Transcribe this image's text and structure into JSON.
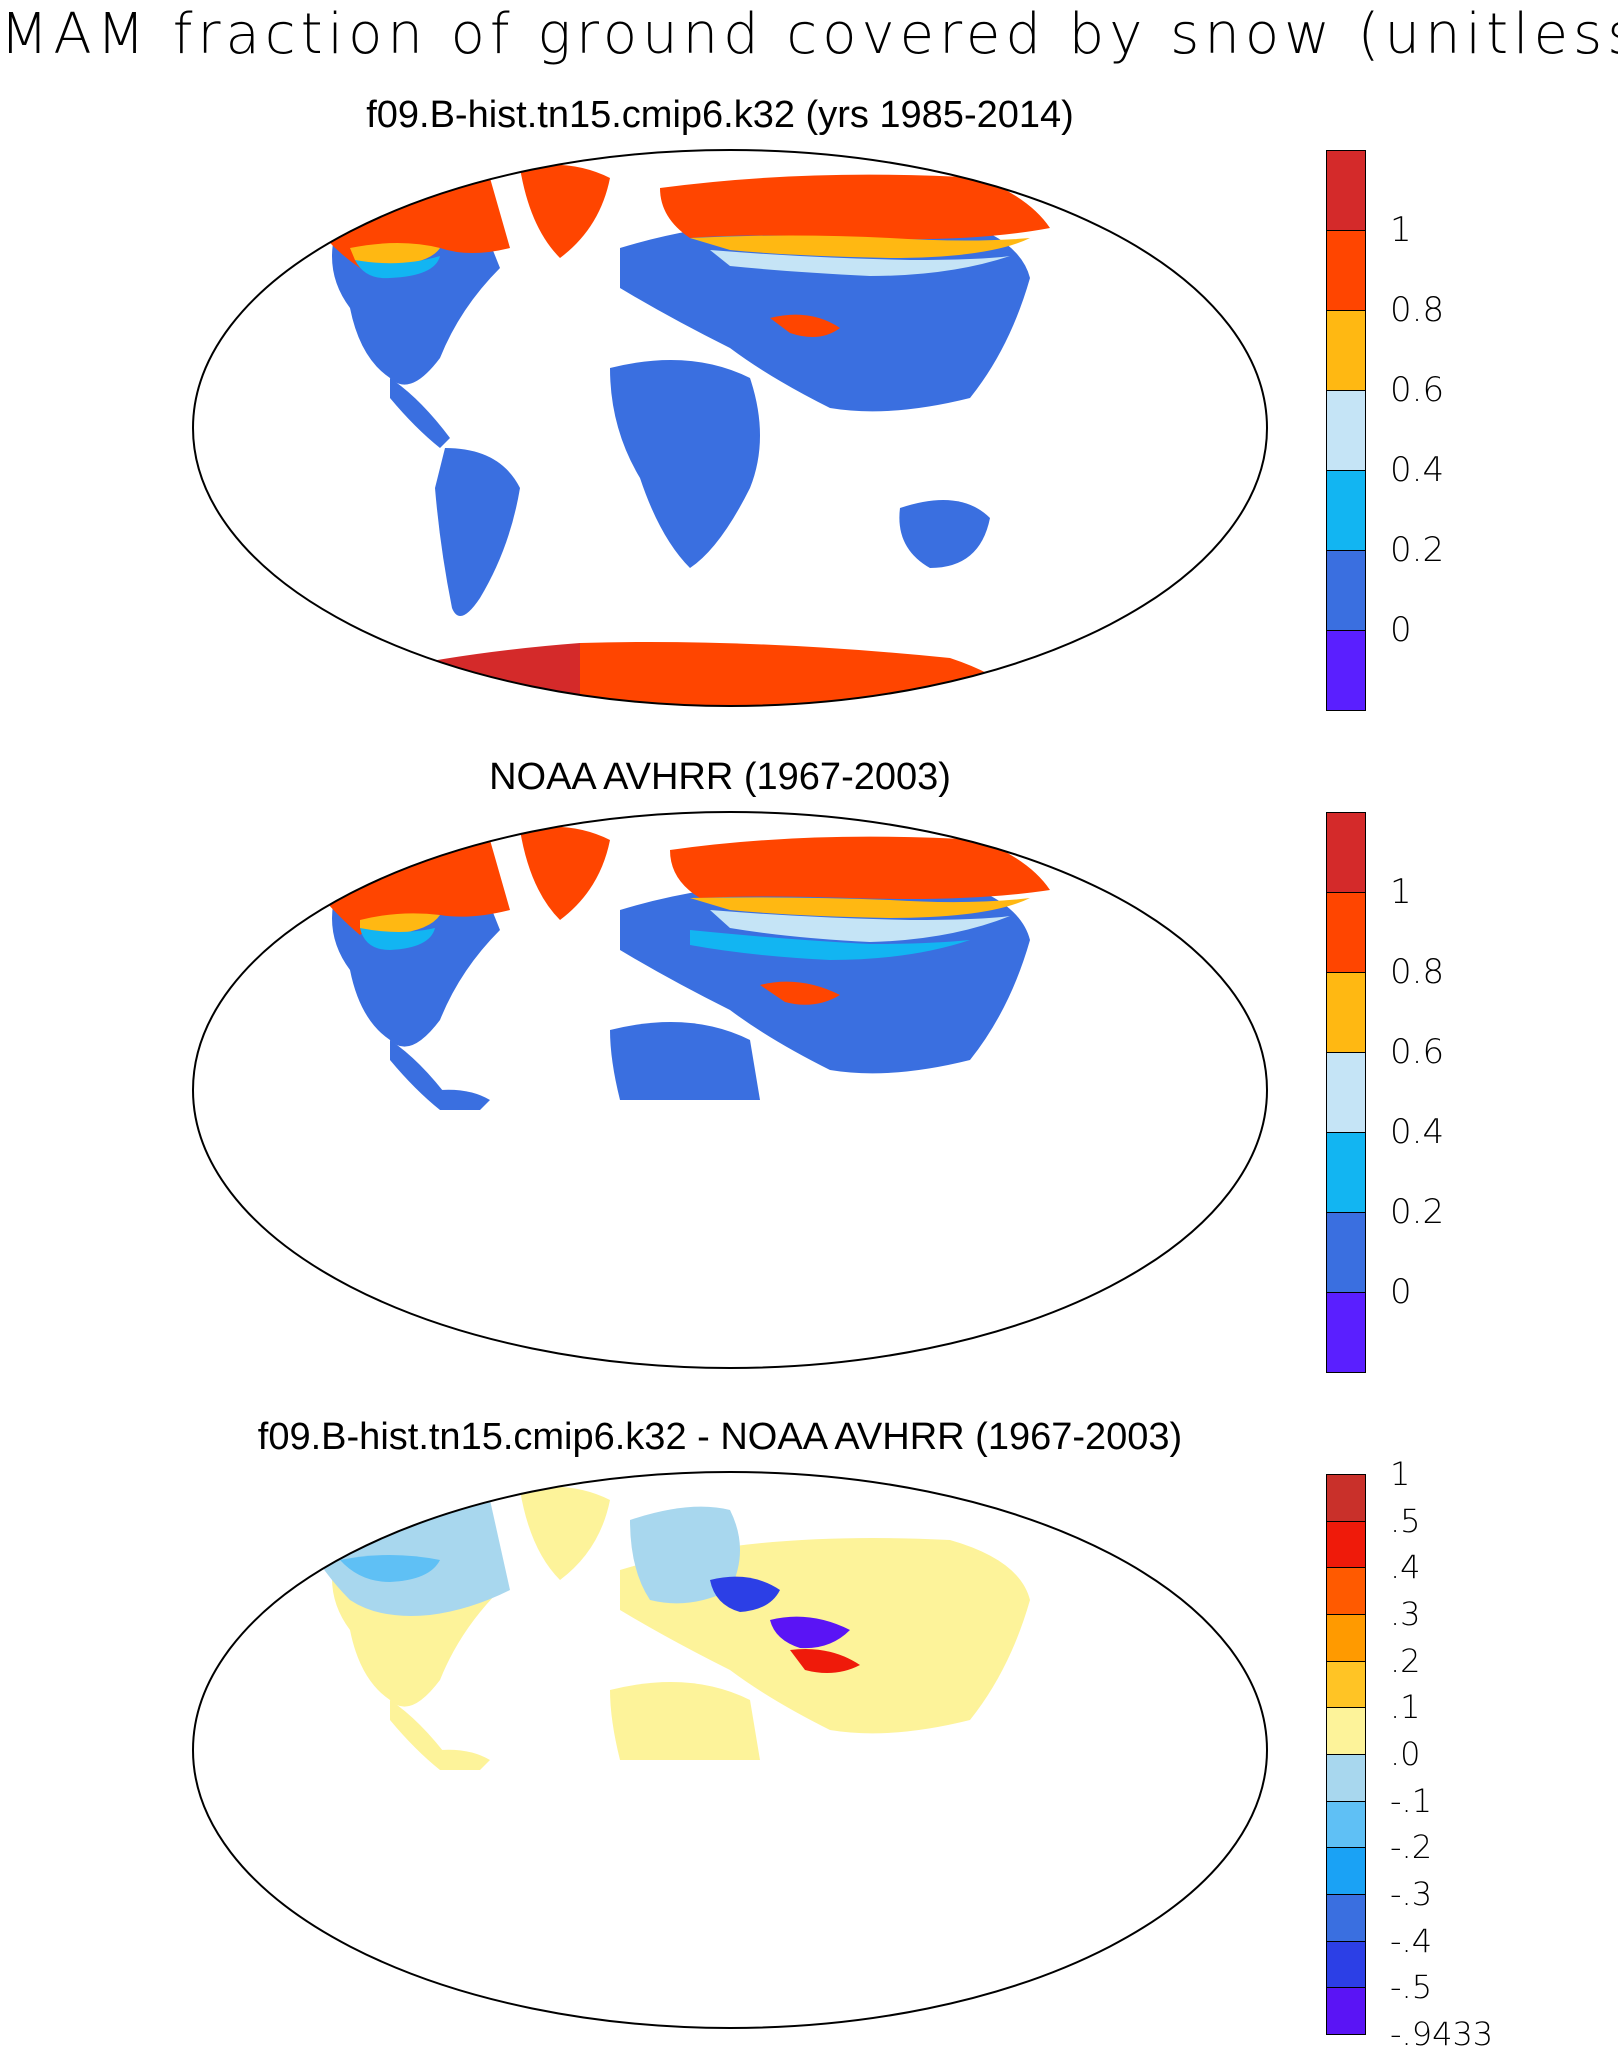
{
  "figure": {
    "title": "MAM fraction of ground covered by snow (unitless)"
  },
  "panels": [
    {
      "title": "f09.B-hist.tn15.cmip6.k32 (yrs 1985-2014)",
      "colorbar": {
        "colors": [
          "#5a1fff",
          "#3a6fe0",
          "#12b5f2",
          "#c5e4f6",
          "#ffb812",
          "#ff4500",
          "#d42a2a"
        ],
        "labels": [
          "0",
          "0.2",
          "0.4",
          "0.6",
          "0.8",
          "1"
        ]
      }
    },
    {
      "title": "NOAA AVHRR (1967-2003)",
      "colorbar": {
        "colors": [
          "#5a1fff",
          "#3a6fe0",
          "#12b5f2",
          "#c5e4f6",
          "#ffb812",
          "#ff4500",
          "#d42a2a"
        ],
        "labels": [
          "0",
          "0.2",
          "0.4",
          "0.6",
          "0.8",
          "1"
        ]
      }
    },
    {
      "title": "f09.B-hist.tn15.cmip6.k32 - NOAA AVHRR (1967-2003)",
      "colorbar": {
        "colors": [
          "#5a14f5",
          "#2c3fe6",
          "#3a6fe0",
          "#1aa2f5",
          "#5fc0f5",
          "#a8d7ee",
          "#fdf39a",
          "#ffc425",
          "#ff9a00",
          "#ff5a00",
          "#ef1a0a",
          "#c9302a"
        ],
        "labels": [
          "-.9433",
          "-.5",
          "-.4",
          "-.3",
          "-.2",
          "-.1",
          ".0",
          ".1",
          ".2",
          ".3",
          ".4",
          ".5",
          "1"
        ]
      }
    }
  ]
}
